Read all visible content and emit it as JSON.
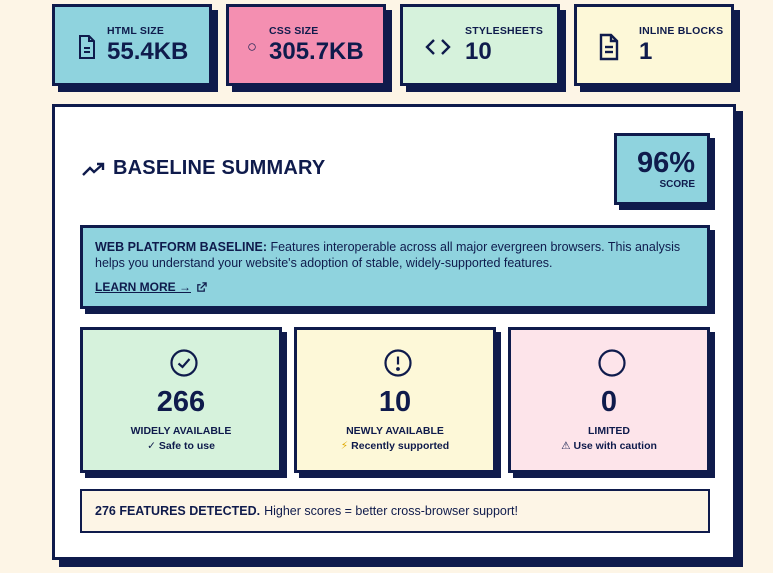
{
  "stats": [
    {
      "label": "HTML SIZE",
      "value": "55.4KB",
      "icon": "file-icon",
      "bg": "#8fd3de"
    },
    {
      "label": "CSS SIZE",
      "value": "305.7KB",
      "icon": "palette-icon",
      "bg": "#f48fb1"
    },
    {
      "label": "STYLESHEETS",
      "value": "10",
      "icon": "code-icon",
      "bg": "#d6f2dc"
    },
    {
      "label": "INLINE BLOCKS",
      "value": "1",
      "icon": "document-icon",
      "bg": "#fdf8d8"
    }
  ],
  "summary": {
    "title": "BASELINE SUMMARY",
    "score_value": "96%",
    "score_label": "SCORE",
    "info_heading": "WEB PLATFORM BASELINE:",
    "info_text": "Features interoperable across all major evergreen browsers. This analysis helps you understand your website's adoption of stable, widely-supported features.",
    "learn_more": "LEARN MORE →"
  },
  "metrics": [
    {
      "value": "266",
      "label": "WIDELY AVAILABLE",
      "sub": "Safe to use",
      "sub_glyph": "✓",
      "bg": "#d6f2dc",
      "icon": "check-circle-icon"
    },
    {
      "value": "10",
      "label": "NEWLY AVAILABLE",
      "sub": "Recently supported",
      "sub_glyph": "⚡",
      "bg": "#fdf8d8",
      "icon": "alert-circle-icon"
    },
    {
      "value": "0",
      "label": "LIMITED",
      "sub": "Use with caution",
      "sub_glyph": "⚠",
      "bg": "#fde4ea",
      "icon": "circle-icon"
    }
  ],
  "footer": {
    "count": "276 FEATURES DETECTED.",
    "text": "Higher scores = better cross-browser support!"
  },
  "colors": {
    "navy": "#0f1b4c",
    "background": "#fdf5e6"
  }
}
